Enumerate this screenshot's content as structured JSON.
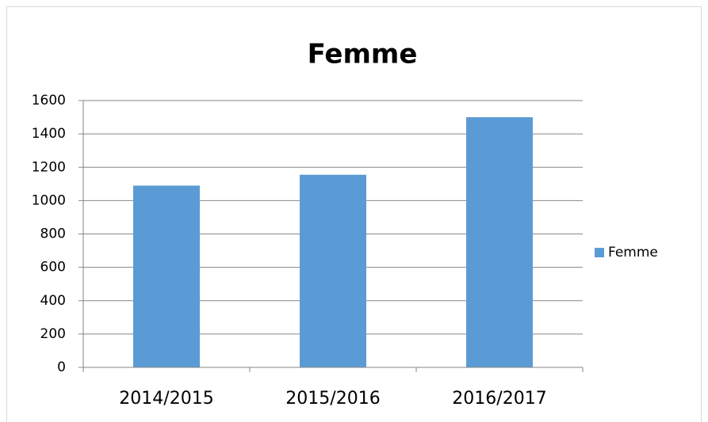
{
  "chart_data": {
    "type": "bar",
    "title": "Femme",
    "categories": [
      "2014/2015",
      "2015/2016",
      "2016/2017"
    ],
    "series": [
      {
        "name": "Femme",
        "color": "#5b9bd5",
        "values": [
          1090,
          1155,
          1500
        ]
      }
    ],
    "ylim": [
      0,
      1600
    ],
    "yticks": [
      0,
      200,
      400,
      600,
      800,
      1000,
      1200,
      1400,
      1600
    ],
    "grid": true,
    "legend": "right"
  }
}
